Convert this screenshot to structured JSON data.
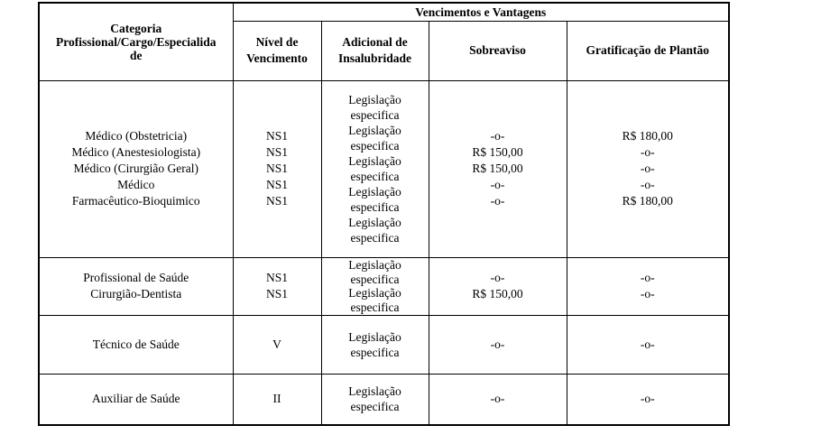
{
  "table": {
    "header": {
      "categoria": "Categoria\nProfissional/Cargo/Especialida\nde",
      "vencimentos_e_vantagens": "Vencimentos e Vantagens",
      "nivel_de_vencimento": "Nível de\nVencimento",
      "adicional_de_insalubridade": "Adicional de\nInsalubridade",
      "sobreaviso": "Sobreaviso",
      "gratificacao_de_plantao": "Gratificação de Plantão"
    },
    "rows": [
      {
        "categorias": [
          "Médico (Obstetricia)",
          "Médico (Anestesiologista)",
          "Médico (Cirurgião Geral)",
          "Médico",
          "Farmacêutico-Bioquimico"
        ],
        "nivel_vencimento": [
          "NS1",
          "NS1",
          "NS1",
          "NS1",
          "NS1"
        ],
        "adicional_insalubridade": [
          "Legislação\nespecifica",
          "Legislação\nespecifica",
          "Legislação\nespecifica",
          "Legislação\nespecifica",
          "Legislação\nespecifica"
        ],
        "sobreaviso": [
          "-o-",
          "R$ 150,00",
          "R$ 150,00",
          "-o-",
          "-o-"
        ],
        "gratificacao_plantao": [
          "R$ 180,00",
          "-o-",
          "-o-",
          "-o-",
          "R$ 180,00"
        ]
      },
      {
        "categorias": [
          "Profissional de Saúde",
          "Cirurgião-Dentista"
        ],
        "nivel_vencimento": [
          "NS1",
          "NS1"
        ],
        "adicional_insalubridade": [
          "Legislação\nespecifica",
          "Legislação\nespecifica"
        ],
        "sobreaviso": [
          "-o-",
          "R$ 150,00"
        ],
        "gratificacao_plantao": [
          "-o-",
          "-o-"
        ]
      },
      {
        "categorias": [
          "Técnico de Saúde"
        ],
        "nivel_vencimento": [
          "V"
        ],
        "adicional_insalubridade": [
          "Legislação\nespecifica"
        ],
        "sobreaviso": [
          "-o-"
        ],
        "gratificacao_plantao": [
          "-o-"
        ]
      },
      {
        "categorias": [
          "Auxiliar de Saúde"
        ],
        "nivel_vencimento": [
          "II"
        ],
        "adicional_insalubridade": [
          "Legislação\nespecifica"
        ],
        "sobreaviso": [
          "-o-"
        ],
        "gratificacao_plantao": [
          "-o-"
        ]
      }
    ]
  }
}
